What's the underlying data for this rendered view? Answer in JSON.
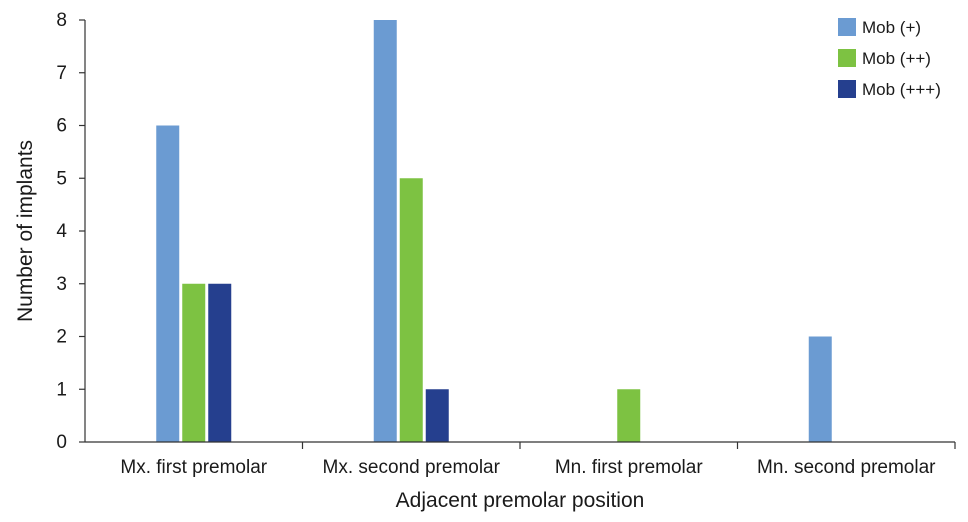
{
  "chart_data": {
    "type": "bar",
    "title": "",
    "xlabel": "Adjacent premolar position",
    "ylabel": "Number of implants",
    "ylim": [
      0,
      8
    ],
    "yticks": [
      0,
      1,
      2,
      3,
      4,
      5,
      6,
      7,
      8
    ],
    "grid": false,
    "legend_position": "top-right",
    "categories": [
      "Mx. first premolar",
      "Mx. second premolar",
      "Mn. first premolar",
      "Mn. second premolar"
    ],
    "series": [
      {
        "name": "Mob (+)",
        "color": "#6b9bd2",
        "values": [
          6,
          8,
          0,
          2
        ]
      },
      {
        "name": "Mob (++)",
        "color": "#7dc242",
        "values": [
          3,
          5,
          1,
          0
        ]
      },
      {
        "name": "Mob (+++)",
        "color": "#253f8e",
        "values": [
          3,
          1,
          0,
          0
        ]
      }
    ]
  }
}
